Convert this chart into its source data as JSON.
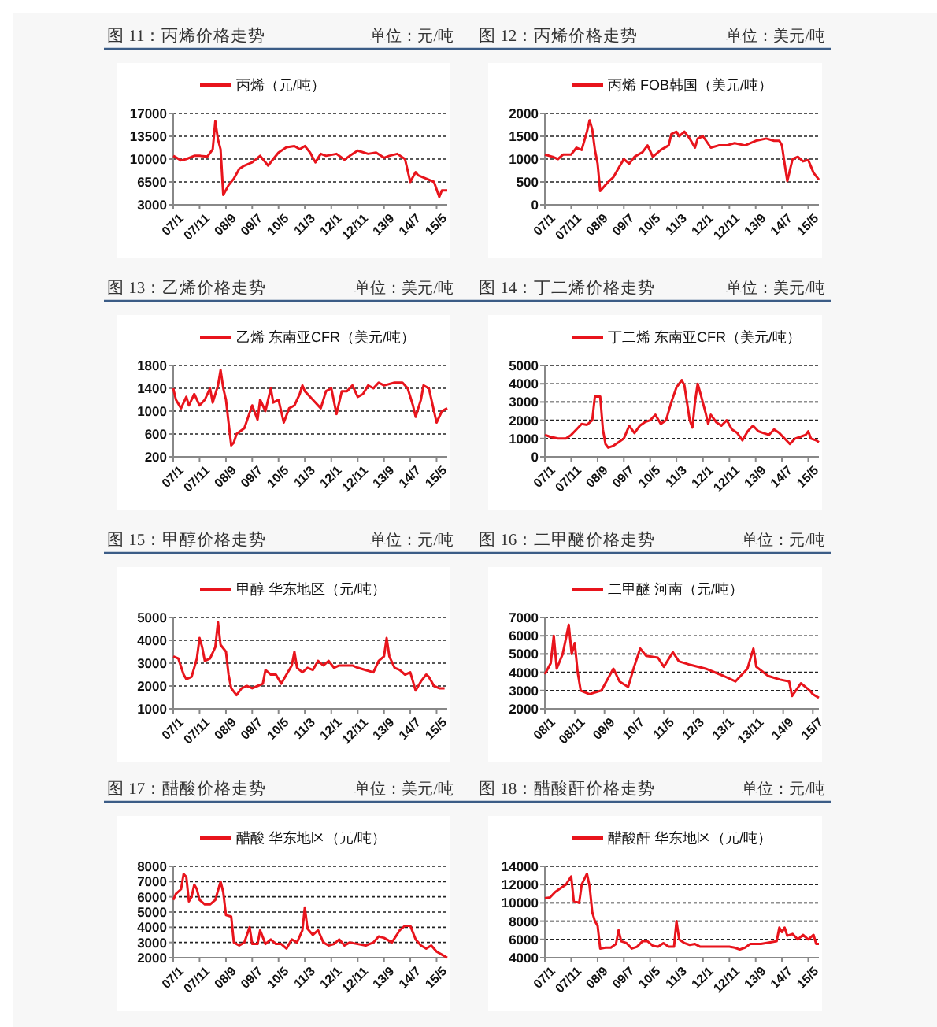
{
  "chart_data": [
    {
      "type": "line",
      "title": "图 11：丙烯价格走势",
      "subtitle": "单位：元/吨",
      "legend": "top",
      "grid": "y",
      "xlim": [
        "2007-01",
        "2015-09"
      ],
      "ylim": [
        3000,
        17000
      ],
      "yticks": [
        3000,
        6500,
        10000,
        13500,
        17000
      ],
      "xticks": [
        {
          "value": "2007-01",
          "label": "07/1"
        },
        {
          "value": "2007-11",
          "label": "07/11"
        },
        {
          "value": "2008-09",
          "label": "08/9"
        },
        {
          "value": "2009-07",
          "label": "09/7"
        },
        {
          "value": "2010-05",
          "label": "10/5"
        },
        {
          "value": "2011-03",
          "label": "11/3"
        },
        {
          "value": "2012-01",
          "label": "12/1"
        },
        {
          "value": "2012-11",
          "label": "12/11"
        },
        {
          "value": "2013-09",
          "label": "13/9"
        },
        {
          "value": "2014-07",
          "label": "14/7"
        },
        {
          "value": "2015-05",
          "label": "15/5"
        }
      ],
      "series": [
        {
          "name": "丙烯（元/吨）",
          "color": "#e8141c",
          "x": [
            "2007-01",
            "2007-04",
            "2007-06",
            "2007-09",
            "2007-11",
            "2008-02",
            "2008-04",
            "2008-05",
            "2008-06",
            "2008-07",
            "2008-08",
            "2008-10",
            "2008-12",
            "2009-02",
            "2009-04",
            "2009-07",
            "2009-10",
            "2010-01",
            "2010-03",
            "2010-05",
            "2010-08",
            "2010-11",
            "2011-01",
            "2011-03",
            "2011-05",
            "2011-07",
            "2011-09",
            "2011-11",
            "2012-03",
            "2012-06",
            "2012-08",
            "2012-11",
            "2013-03",
            "2013-06",
            "2013-09",
            "2013-11",
            "2014-02",
            "2014-05",
            "2014-07",
            "2014-09",
            "2014-10",
            "2015-01",
            "2015-04",
            "2015-06",
            "2015-07",
            "2015-09"
          ],
          "values": [
            10500,
            9800,
            10000,
            10500,
            10500,
            10400,
            11500,
            15800,
            13000,
            11500,
            4500,
            6000,
            7000,
            8500,
            9000,
            9500,
            10500,
            9000,
            10000,
            11000,
            11800,
            12000,
            11500,
            12000,
            11000,
            9500,
            10800,
            10500,
            10800,
            9900,
            10500,
            11300,
            10800,
            11000,
            10200,
            10500,
            10800,
            10000,
            6500,
            8000,
            7500,
            7000,
            6500,
            4200,
            5200,
            5200
          ]
        }
      ]
    },
    {
      "type": "line",
      "title": "图 12：丙烯价格走势",
      "subtitle": "单位：美元/吨",
      "legend": "top",
      "grid": "y",
      "xlim": [
        "2007-01",
        "2015-09"
      ],
      "ylim": [
        0,
        2000
      ],
      "yticks": [
        0,
        500,
        1000,
        1500,
        2000
      ],
      "xticks": [
        {
          "value": "2007-01",
          "label": "07/1"
        },
        {
          "value": "2007-11",
          "label": "07/11"
        },
        {
          "value": "2008-09",
          "label": "08/9"
        },
        {
          "value": "2009-07",
          "label": "09/7"
        },
        {
          "value": "2010-05",
          "label": "10/5"
        },
        {
          "value": "2011-03",
          "label": "11/3"
        },
        {
          "value": "2012-01",
          "label": "12/1"
        },
        {
          "value": "2012-11",
          "label": "12/11"
        },
        {
          "value": "2013-09",
          "label": "13/9"
        },
        {
          "value": "2014-07",
          "label": "14/7"
        },
        {
          "value": "2015-05",
          "label": "15/5"
        }
      ],
      "series": [
        {
          "name": "丙烯 FOB韩国（美元/吨）",
          "color": "#e8141c",
          "x": [
            "2007-01",
            "2007-04",
            "2007-06",
            "2007-08",
            "2007-11",
            "2008-01",
            "2008-03",
            "2008-05",
            "2008-06",
            "2008-07",
            "2008-08",
            "2008-09",
            "2008-10",
            "2009-01",
            "2009-03",
            "2009-05",
            "2009-07",
            "2009-09",
            "2009-11",
            "2010-02",
            "2010-04",
            "2010-06",
            "2010-09",
            "2010-12",
            "2011-01",
            "2011-03",
            "2011-04",
            "2011-06",
            "2011-08",
            "2011-10",
            "2011-11",
            "2012-01",
            "2012-04",
            "2012-07",
            "2012-10",
            "2013-01",
            "2013-05",
            "2013-09",
            "2014-01",
            "2014-04",
            "2014-06",
            "2014-07",
            "2014-08",
            "2014-09",
            "2014-11",
            "2015-01",
            "2015-03",
            "2015-05",
            "2015-07",
            "2015-09"
          ],
          "values": [
            1100,
            1050,
            1000,
            1100,
            1100,
            1250,
            1200,
            1600,
            1850,
            1650,
            1200,
            900,
            300,
            500,
            600,
            800,
            1000,
            900,
            1050,
            1150,
            1300,
            1050,
            1200,
            1300,
            1550,
            1600,
            1500,
            1600,
            1450,
            1250,
            1450,
            1500,
            1250,
            1300,
            1300,
            1350,
            1300,
            1400,
            1450,
            1400,
            1400,
            1300,
            900,
            520,
            1000,
            1050,
            950,
            980,
            700,
            550
          ]
        }
      ]
    },
    {
      "type": "line",
      "title": "图 13：乙烯价格走势",
      "subtitle": "单位：美元/吨",
      "legend": "top",
      "grid": "y",
      "xlim": [
        "2007-01",
        "2015-09"
      ],
      "ylim": [
        200,
        1800
      ],
      "yticks": [
        200,
        600,
        1000,
        1400,
        1800
      ],
      "xticks": [
        {
          "value": "2007-01",
          "label": "07/1"
        },
        {
          "value": "2007-11",
          "label": "07/11"
        },
        {
          "value": "2008-09",
          "label": "08/9"
        },
        {
          "value": "2009-07",
          "label": "09/7"
        },
        {
          "value": "2010-05",
          "label": "10/5"
        },
        {
          "value": "2011-03",
          "label": "11/3"
        },
        {
          "value": "2012-01",
          "label": "12/1"
        },
        {
          "value": "2012-11",
          "label": "12/11"
        },
        {
          "value": "2013-09",
          "label": "13/9"
        },
        {
          "value": "2014-07",
          "label": "14/7"
        },
        {
          "value": "2015-05",
          "label": "15/5"
        }
      ],
      "series": [
        {
          "name": "乙烯 东南亚CFR（美元/吨）",
          "color": "#e8141c",
          "x": [
            "2007-01",
            "2007-02",
            "2007-04",
            "2007-06",
            "2007-07",
            "2007-09",
            "2007-11",
            "2008-01",
            "2008-03",
            "2008-04",
            "2008-06",
            "2008-07",
            "2008-08",
            "2008-09",
            "2008-10",
            "2008-11",
            "2008-12",
            "2009-01",
            "2009-04",
            "2009-07",
            "2009-09",
            "2009-10",
            "2009-12",
            "2010-02",
            "2010-03",
            "2010-05",
            "2010-07",
            "2010-09",
            "2010-11",
            "2011-01",
            "2011-02",
            "2011-03",
            "2011-06",
            "2011-09",
            "2011-11",
            "2012-01",
            "2012-03",
            "2012-05",
            "2012-07",
            "2012-09",
            "2012-11",
            "2013-01",
            "2013-03",
            "2013-05",
            "2013-07",
            "2013-09",
            "2014-01",
            "2014-04",
            "2014-06",
            "2014-08",
            "2014-09",
            "2014-11",
            "2014-12",
            "2015-02",
            "2015-04",
            "2015-05",
            "2015-07",
            "2015-09"
          ],
          "values": [
            1400,
            1200,
            1050,
            1250,
            1100,
            1300,
            1100,
            1200,
            1400,
            1150,
            1450,
            1720,
            1400,
            1200,
            800,
            400,
            450,
            600,
            700,
            1100,
            850,
            1200,
            1000,
            1400,
            1150,
            1200,
            800,
            1050,
            1100,
            1300,
            1450,
            1350,
            1200,
            1050,
            1350,
            1400,
            950,
            1350,
            1350,
            1450,
            1250,
            1300,
            1450,
            1400,
            1500,
            1450,
            1500,
            1500,
            1400,
            1100,
            900,
            1200,
            1450,
            1400,
            1000,
            800,
            1000,
            1050
          ]
        }
      ]
    },
    {
      "type": "line",
      "title": "图 14：丁二烯价格走势",
      "subtitle": "单位：美元/吨",
      "legend": "top",
      "grid": "y",
      "xlim": [
        "2007-01",
        "2015-09"
      ],
      "ylim": [
        0,
        5000
      ],
      "yticks": [
        0,
        1000,
        2000,
        3000,
        4000,
        5000
      ],
      "xticks": [
        {
          "value": "2007-01",
          "label": "07/1"
        },
        {
          "value": "2007-11",
          "label": "07/11"
        },
        {
          "value": "2008-09",
          "label": "08/9"
        },
        {
          "value": "2009-07",
          "label": "09/7"
        },
        {
          "value": "2010-05",
          "label": "10/5"
        },
        {
          "value": "2011-03",
          "label": "11/3"
        },
        {
          "value": "2012-01",
          "label": "12/1"
        },
        {
          "value": "2012-11",
          "label": "12/11"
        },
        {
          "value": "2013-09",
          "label": "13/9"
        },
        {
          "value": "2014-07",
          "label": "14/7"
        },
        {
          "value": "2015-05",
          "label": "15/5"
        }
      ],
      "series": [
        {
          "name": "丁二烯 东南亚CFR（美元/吨）",
          "color": "#e8141c",
          "x": [
            "2007-01",
            "2007-03",
            "2007-06",
            "2007-09",
            "2007-11",
            "2008-01",
            "2008-03",
            "2008-05",
            "2008-07",
            "2008-08",
            "2008-10",
            "2008-11",
            "2008-12",
            "2009-01",
            "2009-03",
            "2009-05",
            "2009-07",
            "2009-09",
            "2009-11",
            "2010-01",
            "2010-03",
            "2010-05",
            "2010-07",
            "2010-09",
            "2010-11",
            "2011-01",
            "2011-03",
            "2011-05",
            "2011-06",
            "2011-08",
            "2011-09",
            "2011-10",
            "2011-11",
            "2011-12",
            "2012-02",
            "2012-03",
            "2012-04",
            "2012-06",
            "2012-08",
            "2012-10",
            "2012-12",
            "2013-02",
            "2013-04",
            "2013-06",
            "2013-08",
            "2013-10",
            "2013-12",
            "2014-02",
            "2014-04",
            "2014-06",
            "2014-08",
            "2014-10",
            "2014-12",
            "2015-02",
            "2015-04",
            "2015-05",
            "2015-06",
            "2015-08",
            "2015-09"
          ],
          "values": [
            1200,
            1100,
            1000,
            1000,
            1200,
            1500,
            1800,
            1750,
            2000,
            3300,
            3300,
            1500,
            700,
            500,
            600,
            800,
            1000,
            1700,
            1300,
            1700,
            1900,
            2000,
            2300,
            1800,
            2000,
            3000,
            3800,
            4200,
            3900,
            2000,
            1600,
            3000,
            4000,
            3500,
            2400,
            1800,
            2300,
            1900,
            1700,
            2000,
            1500,
            1300,
            900,
            1400,
            1700,
            1400,
            1300,
            1200,
            1500,
            1300,
            1000,
            700,
            1000,
            1100,
            1200,
            1400,
            1000,
            900,
            800
          ]
        }
      ]
    },
    {
      "type": "line",
      "title": "图 15：甲醇价格走势",
      "subtitle": "单位：元/吨",
      "legend": "top",
      "grid": "y",
      "xlim": [
        "2007-01",
        "2015-09"
      ],
      "ylim": [
        1000,
        5000
      ],
      "yticks": [
        1000,
        2000,
        3000,
        4000,
        5000
      ],
      "xticks": [
        {
          "value": "2007-01",
          "label": "07/1"
        },
        {
          "value": "2007-11",
          "label": "07/11"
        },
        {
          "value": "2008-09",
          "label": "08/9"
        },
        {
          "value": "2009-07",
          "label": "09/7"
        },
        {
          "value": "2010-05",
          "label": "10/5"
        },
        {
          "value": "2011-03",
          "label": "11/3"
        },
        {
          "value": "2012-01",
          "label": "12/1"
        },
        {
          "value": "2012-11",
          "label": "12/11"
        },
        {
          "value": "2013-09",
          "label": "13/9"
        },
        {
          "value": "2014-07",
          "label": "14/7"
        },
        {
          "value": "2015-05",
          "label": "15/5"
        }
      ],
      "series": [
        {
          "name": "甲醇 华东地区（元/吨）",
          "color": "#e8141c",
          "x": [
            "2007-01",
            "2007-03",
            "2007-05",
            "2007-06",
            "2007-08",
            "2007-10",
            "2007-11",
            "2007-12",
            "2008-01",
            "2008-03",
            "2008-05",
            "2008-06",
            "2008-07",
            "2008-09",
            "2008-10",
            "2008-11",
            "2009-01",
            "2009-03",
            "2009-05",
            "2009-07",
            "2009-09",
            "2009-11",
            "2009-12",
            "2010-02",
            "2010-04",
            "2010-06",
            "2010-08",
            "2010-10",
            "2010-11",
            "2010-12",
            "2011-02",
            "2011-04",
            "2011-06",
            "2011-08",
            "2011-10",
            "2011-12",
            "2012-02",
            "2012-04",
            "2012-07",
            "2012-09",
            "2012-11",
            "2013-02",
            "2013-05",
            "2013-07",
            "2013-09",
            "2013-10",
            "2013-11",
            "2014-01",
            "2014-03",
            "2014-05",
            "2014-07",
            "2014-09",
            "2014-11",
            "2015-01",
            "2015-02",
            "2015-04",
            "2015-06",
            "2015-08"
          ],
          "values": [
            3300,
            3200,
            2500,
            2300,
            2400,
            3200,
            4100,
            3700,
            3100,
            3200,
            3700,
            4800,
            3800,
            3500,
            2500,
            1900,
            1600,
            1900,
            2000,
            1900,
            2000,
            2100,
            2700,
            2500,
            2500,
            2100,
            2500,
            2900,
            3500,
            2800,
            2600,
            2800,
            2700,
            3100,
            2900,
            3100,
            2800,
            2900,
            2900,
            2900,
            2800,
            2700,
            2600,
            3100,
            3300,
            4100,
            3300,
            2800,
            2700,
            2500,
            2600,
            1800,
            2200,
            2500,
            2400,
            2000,
            1900,
            1900
          ]
        }
      ]
    },
    {
      "type": "line",
      "title": "图 16：二甲醚价格走势",
      "subtitle": "单位：元/吨",
      "legend": "top",
      "grid": "y",
      "xlim": [
        "2008-01",
        "2015-09"
      ],
      "ylim": [
        2000,
        7000
      ],
      "yticks": [
        2000,
        3000,
        4000,
        5000,
        6000,
        7000
      ],
      "xticks": [
        {
          "value": "2008-01",
          "label": "08/1"
        },
        {
          "value": "2008-11",
          "label": "08/11"
        },
        {
          "value": "2009-09",
          "label": "09/9"
        },
        {
          "value": "2010-07",
          "label": "10/7"
        },
        {
          "value": "2011-05",
          "label": "11/5"
        },
        {
          "value": "2012-03",
          "label": "12/3"
        },
        {
          "value": "2013-01",
          "label": "13/1"
        },
        {
          "value": "2013-11",
          "label": "13/11"
        },
        {
          "value": "2014-09",
          "label": "14/9"
        },
        {
          "value": "2015-07",
          "label": "15/7"
        }
      ],
      "series": [
        {
          "name": "二甲醚 河南（元/吨）",
          "color": "#e8141c",
          "x": [
            "2008-01",
            "2008-03",
            "2008-04",
            "2008-05",
            "2008-07",
            "2008-09",
            "2008-10",
            "2008-11",
            "2008-12",
            "2009-01",
            "2009-04",
            "2009-08",
            "2009-12",
            "2010-02",
            "2010-05",
            "2010-07",
            "2010-09",
            "2010-11",
            "2011-03",
            "2011-05",
            "2011-08",
            "2011-10",
            "2012-02",
            "2012-07",
            "2013-01",
            "2013-05",
            "2013-09",
            "2013-11",
            "2013-12",
            "2014-04",
            "2014-08",
            "2014-11",
            "2014-12",
            "2015-03",
            "2015-06",
            "2015-07",
            "2015-09"
          ],
          "values": [
            3900,
            4500,
            6000,
            4200,
            5000,
            6600,
            5000,
            5600,
            4000,
            3000,
            2800,
            3000,
            4200,
            3500,
            3200,
            4300,
            5300,
            4900,
            4800,
            4300,
            5100,
            4600,
            4400,
            4200,
            3800,
            3500,
            4200,
            5300,
            4300,
            3800,
            3600,
            3500,
            2700,
            3400,
            3000,
            2800,
            2600
          ]
        }
      ]
    },
    {
      "type": "line",
      "title": "图 17：醋酸价格走势",
      "subtitle": "单位：美元/吨",
      "legend": "top",
      "grid": "y",
      "xlim": [
        "2007-01",
        "2015-09"
      ],
      "ylim": [
        2000,
        8000
      ],
      "yticks": [
        2000,
        3000,
        4000,
        5000,
        6000,
        7000,
        8000
      ],
      "xticks": [
        {
          "value": "2007-01",
          "label": "07/1"
        },
        {
          "value": "2007-11",
          "label": "07/11"
        },
        {
          "value": "2008-09",
          "label": "08/9"
        },
        {
          "value": "2009-07",
          "label": "09/7"
        },
        {
          "value": "2010-05",
          "label": "10/5"
        },
        {
          "value": "2011-03",
          "label": "11/3"
        },
        {
          "value": "2012-01",
          "label": "12/1"
        },
        {
          "value": "2012-11",
          "label": "12/11"
        },
        {
          "value": "2013-09",
          "label": "13/9"
        },
        {
          "value": "2014-07",
          "label": "14/7"
        },
        {
          "value": "2015-05",
          "label": "15/5"
        }
      ],
      "series": [
        {
          "name": "醋酸 华东地区（元/吨）",
          "color": "#e8141c",
          "x": [
            "2007-01",
            "2007-02",
            "2007-04",
            "2007-05",
            "2007-06",
            "2007-07",
            "2007-08",
            "2007-09",
            "2007-10",
            "2007-11",
            "2008-01",
            "2008-03",
            "2008-05",
            "2008-07",
            "2008-08",
            "2008-09",
            "2008-11",
            "2008-12",
            "2009-02",
            "2009-04",
            "2009-06",
            "2009-07",
            "2009-09",
            "2009-10",
            "2009-12",
            "2010-02",
            "2010-04",
            "2010-06",
            "2010-08",
            "2010-10",
            "2010-12",
            "2011-02",
            "2011-03",
            "2011-04",
            "2011-06",
            "2011-08",
            "2011-10",
            "2011-12",
            "2012-02",
            "2012-04",
            "2012-06",
            "2012-08",
            "2012-11",
            "2013-02",
            "2013-05",
            "2013-07",
            "2013-09",
            "2013-12",
            "2014-03",
            "2014-05",
            "2014-07",
            "2014-09",
            "2014-11",
            "2015-01",
            "2015-03",
            "2015-05",
            "2015-07",
            "2015-09"
          ],
          "values": [
            5800,
            6200,
            6500,
            7500,
            7300,
            5700,
            6000,
            6800,
            6500,
            5800,
            5500,
            5500,
            5800,
            7000,
            6300,
            4800,
            4700,
            3000,
            2800,
            3000,
            4000,
            2900,
            2900,
            3800,
            2900,
            3200,
            2900,
            2900,
            2600,
            3200,
            3000,
            3800,
            5300,
            3900,
            3500,
            3800,
            3000,
            2800,
            2900,
            3200,
            2800,
            3000,
            2900,
            2800,
            3000,
            3400,
            3300,
            3000,
            3800,
            4100,
            4100,
            3200,
            2800,
            2600,
            2800,
            2400,
            2200,
            2000
          ]
        }
      ]
    },
    {
      "type": "line",
      "title": "图 18：醋酸酐价格走势",
      "subtitle": "单位：元/吨",
      "legend": "top",
      "grid": "y",
      "xlim": [
        "2007-01",
        "2015-09"
      ],
      "ylim": [
        4000,
        14000
      ],
      "yticks": [
        4000,
        6000,
        8000,
        10000,
        12000,
        14000
      ],
      "xticks": [
        {
          "value": "2007-01",
          "label": "07/1"
        },
        {
          "value": "2007-11",
          "label": "07/11"
        },
        {
          "value": "2008-09",
          "label": "08/9"
        },
        {
          "value": "2009-07",
          "label": "09/7"
        },
        {
          "value": "2010-05",
          "label": "10/5"
        },
        {
          "value": "2011-03",
          "label": "11/3"
        },
        {
          "value": "2012-01",
          "label": "12/1"
        },
        {
          "value": "2012-11",
          "label": "12/11"
        },
        {
          "value": "2013-09",
          "label": "13/9"
        },
        {
          "value": "2014-07",
          "label": "14/7"
        },
        {
          "value": "2015-05",
          "label": "15/5"
        }
      ],
      "series": [
        {
          "name": "醋酸酐 华东地区（元/吨）",
          "color": "#e8141c",
          "x": [
            "2007-01",
            "2007-03",
            "2007-05",
            "2007-07",
            "2007-09",
            "2007-11",
            "2007-12",
            "2008-02",
            "2008-03",
            "2008-05",
            "2008-06",
            "2008-07",
            "2008-08",
            "2008-09",
            "2008-10",
            "2008-12",
            "2009-02",
            "2009-04",
            "2009-05",
            "2009-06",
            "2009-08",
            "2009-10",
            "2009-12",
            "2010-02",
            "2010-04",
            "2010-06",
            "2010-08",
            "2010-10",
            "2010-12",
            "2011-02",
            "2011-03",
            "2011-04",
            "2011-06",
            "2011-08",
            "2011-10",
            "2011-12",
            "2012-03",
            "2012-07",
            "2012-11",
            "2013-01",
            "2013-03",
            "2013-05",
            "2013-07",
            "2013-11",
            "2014-03",
            "2014-05",
            "2014-06",
            "2014-07",
            "2014-08",
            "2014-09",
            "2014-11",
            "2015-01",
            "2015-03",
            "2015-05",
            "2015-07",
            "2015-08",
            "2015-09"
          ],
          "values": [
            10500,
            10600,
            11200,
            11600,
            12000,
            12900,
            10200,
            10000,
            12000,
            13200,
            11800,
            9000,
            8000,
            7500,
            5000,
            5100,
            5100,
            5500,
            7000,
            5800,
            5600,
            5000,
            5200,
            5800,
            5800,
            5300,
            5200,
            5600,
            5200,
            5200,
            8000,
            6000,
            5600,
            5400,
            5500,
            5200,
            5200,
            5200,
            5200,
            5100,
            4900,
            5100,
            5500,
            5500,
            5700,
            5800,
            7300,
            6800,
            7300,
            6400,
            6600,
            6000,
            6500,
            6000,
            6500,
            5500,
            5500
          ]
        }
      ]
    }
  ]
}
